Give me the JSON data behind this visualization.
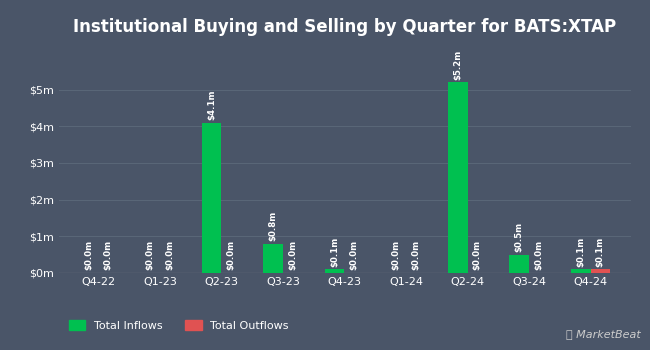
{
  "title": "Institutional Buying and Selling by Quarter for BATS:XTAP",
  "categories": [
    "Q4-22",
    "Q1-23",
    "Q2-23",
    "Q3-23",
    "Q4-23",
    "Q1-24",
    "Q2-24",
    "Q3-24",
    "Q4-24"
  ],
  "inflows": [
    0.0,
    0.0,
    4.1,
    0.8,
    0.1,
    0.0,
    5.2,
    0.5,
    0.1
  ],
  "outflows": [
    0.0,
    0.0,
    0.0,
    0.0,
    0.0,
    0.0,
    0.0,
    0.0,
    0.1
  ],
  "inflow_labels": [
    "$0.0m",
    "$0.0m",
    "$4.1m",
    "$0.8m",
    "$0.1m",
    "$0.0m",
    "$5.2m",
    "$0.5m",
    "$0.1m"
  ],
  "outflow_labels": [
    "$0.0m",
    "$0.0m",
    "$0.0m",
    "$0.0m",
    "$0.0m",
    "$0.0m",
    "$0.0m",
    "$0.0m",
    "$0.1m"
  ],
  "inflow_color": "#00c050",
  "outflow_color": "#e05252",
  "background_color": "#4a5568",
  "text_color": "#ffffff",
  "grid_color": "#5c6a7a",
  "ylim": [
    0,
    6.2
  ],
  "yticks": [
    0,
    1,
    2,
    3,
    4,
    5
  ],
  "ytick_labels": [
    "$0m",
    "$1m",
    "$2m",
    "$3m",
    "$4m",
    "$5m"
  ],
  "bar_width": 0.32,
  "legend_inflow": "Total Inflows",
  "legend_outflow": "Total Outflows",
  "title_fontsize": 12,
  "label_fontsize": 6.2,
  "tick_fontsize": 8,
  "legend_fontsize": 8
}
